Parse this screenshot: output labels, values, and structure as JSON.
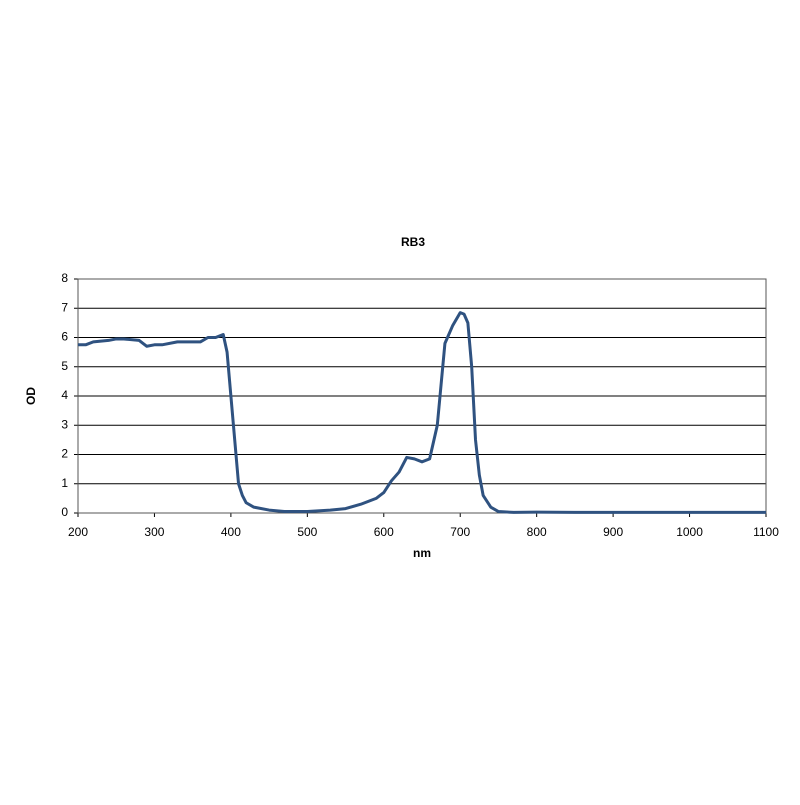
{
  "chart_data": {
    "type": "line",
    "title": "RB3",
    "x_label": "nm",
    "y_label": "OD",
    "x": [
      200,
      210,
      220,
      240,
      250,
      260,
      280,
      290,
      300,
      310,
      330,
      350,
      360,
      370,
      380,
      390,
      395,
      400,
      405,
      410,
      415,
      420,
      430,
      450,
      470,
      500,
      530,
      550,
      570,
      590,
      600,
      610,
      620,
      630,
      640,
      650,
      660,
      670,
      680,
      690,
      700,
      705,
      710,
      715,
      720,
      725,
      730,
      740,
      750,
      770,
      800,
      850,
      900,
      1000,
      1100
    ],
    "series": [
      {
        "name": "RB3",
        "color": "#2f5280",
        "values": [
          5.75,
          5.75,
          5.85,
          5.9,
          5.95,
          5.95,
          5.9,
          5.7,
          5.75,
          5.75,
          5.85,
          5.85,
          5.85,
          6.0,
          6.0,
          6.1,
          5.5,
          4.0,
          2.5,
          1.0,
          0.6,
          0.35,
          0.2,
          0.1,
          0.05,
          0.05,
          0.1,
          0.15,
          0.3,
          0.5,
          0.7,
          1.1,
          1.4,
          1.9,
          1.85,
          1.75,
          1.85,
          3.0,
          5.8,
          6.4,
          6.85,
          6.8,
          6.5,
          5.0,
          2.5,
          1.3,
          0.6,
          0.2,
          0.05,
          0.02,
          0.03,
          0.02,
          0.02,
          0.02,
          0.02
        ]
      }
    ],
    "xlim": [
      200,
      1100
    ],
    "xticks": [
      200,
      300,
      400,
      500,
      600,
      700,
      800,
      900,
      1000,
      1100
    ],
    "ylim": [
      0,
      8
    ],
    "yticks": [
      0,
      1,
      2,
      3,
      4,
      5,
      6,
      7,
      8
    ],
    "grid": true
  }
}
